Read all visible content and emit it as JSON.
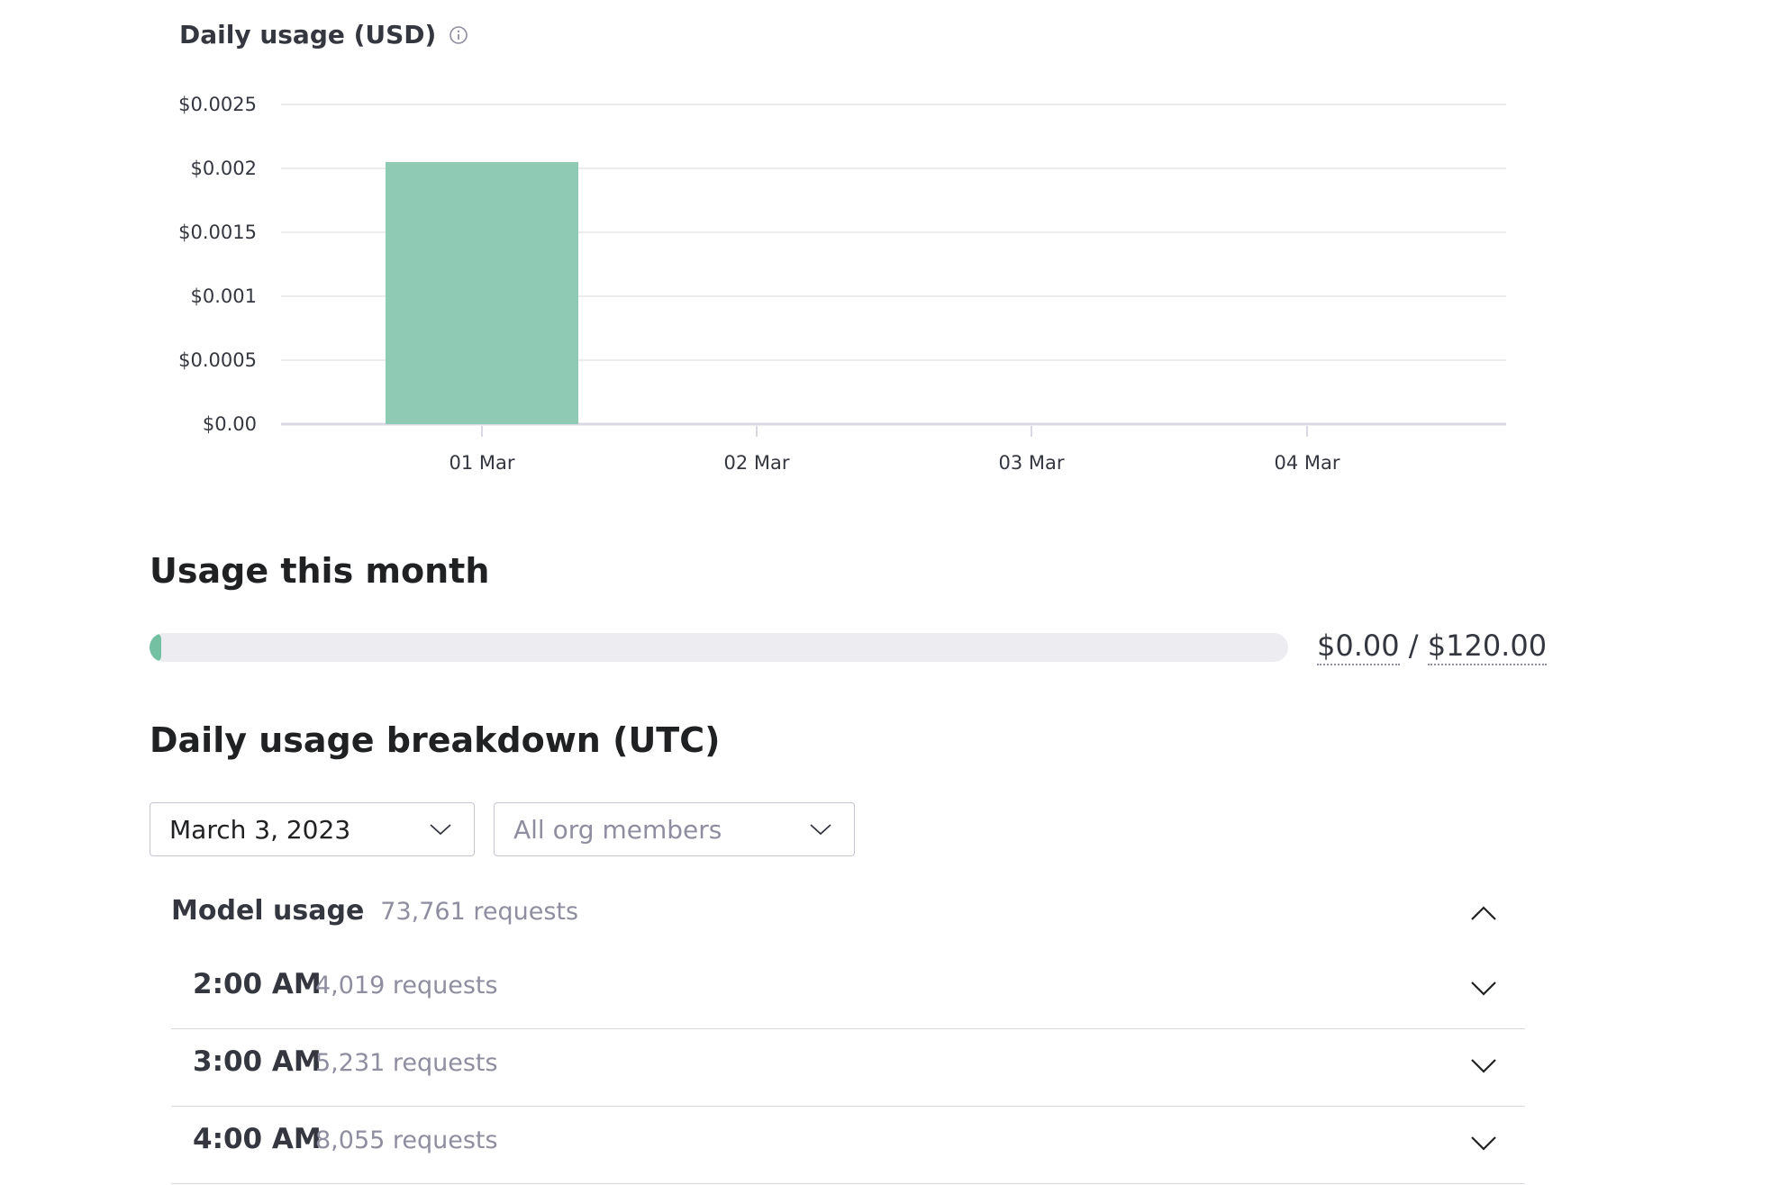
{
  "chart_section": {
    "title": "Daily usage (USD)",
    "info_icon": "info-circle-icon"
  },
  "chart_data": {
    "type": "bar",
    "title": "Daily usage (USD)",
    "categories": [
      "01 Mar",
      "02 Mar",
      "03 Mar",
      "04 Mar"
    ],
    "values": [
      0.00205,
      0,
      0,
      0
    ],
    "ylim": [
      0,
      0.0025
    ],
    "y_ticks": [
      0,
      0.0005,
      0.001,
      0.0015,
      0.002,
      0.0025
    ],
    "y_tick_labels": [
      "$0.00",
      "$0.0005",
      "$0.001",
      "$0.0015",
      "$0.002",
      "$0.0025"
    ],
    "grid": true,
    "bar_color": "#8ecab4"
  },
  "usage_month": {
    "title": "Usage this month",
    "progress_fraction": 0.0,
    "amount_used": "$0.00",
    "separator": "/",
    "amount_limit": "$120.00",
    "fill_color": "#74c0a2"
  },
  "breakdown": {
    "title": "Daily usage breakdown (UTC)",
    "date_select": {
      "value": "March 3, 2023"
    },
    "members_select": {
      "value": "All org members"
    },
    "model_usage": {
      "label": "Model usage",
      "count": "73,761 requests",
      "expanded_icon": "chevron-up-icon"
    },
    "hours": [
      {
        "time": "2:00 AM",
        "count": "4,019 requests"
      },
      {
        "time": "3:00 AM",
        "count": "5,231 requests"
      },
      {
        "time": "4:00 AM",
        "count": "8,055 requests"
      }
    ]
  }
}
